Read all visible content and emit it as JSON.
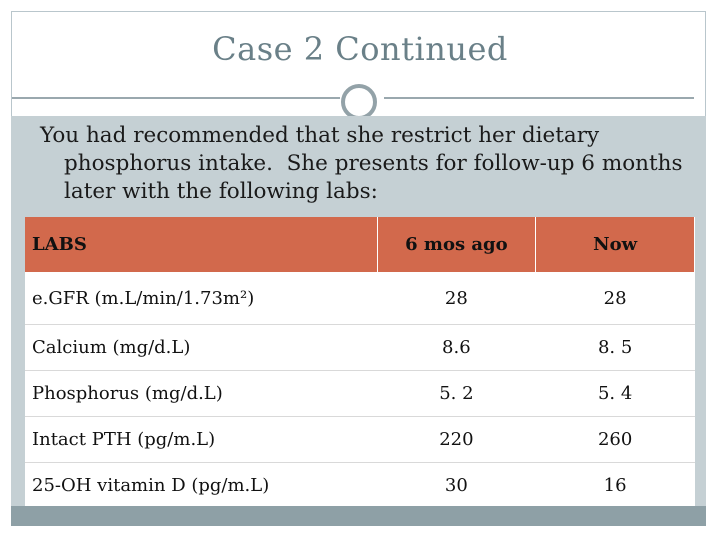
{
  "slide": {
    "title": "Case 2 Continued",
    "body_text": "You had recommended that she restrict her dietary phosphorus intake.  She presents for follow-up 6 months later with the following labs:"
  },
  "table": {
    "headers": [
      "LABS",
      "6 mos ago",
      "Now"
    ],
    "rows": [
      [
        "e.GFR (m.L/min/1.73m²)",
        "28",
        "28"
      ],
      [
        "Calcium (mg/d.L)",
        "8.6",
        "8. 5"
      ],
      [
        "Phosphorus (mg/d.L)",
        "5. 2",
        "5. 4"
      ],
      [
        "Intact PTH (pg/m.L)",
        "220",
        "260"
      ],
      [
        "25-OH vitamin D (pg/m.L)",
        "30",
        "16"
      ]
    ]
  },
  "colors": {
    "header_fill": "#d2694c",
    "panel": "#c5d0d4",
    "title": "#6a8088",
    "accent_bar": "#8ea0a6"
  }
}
